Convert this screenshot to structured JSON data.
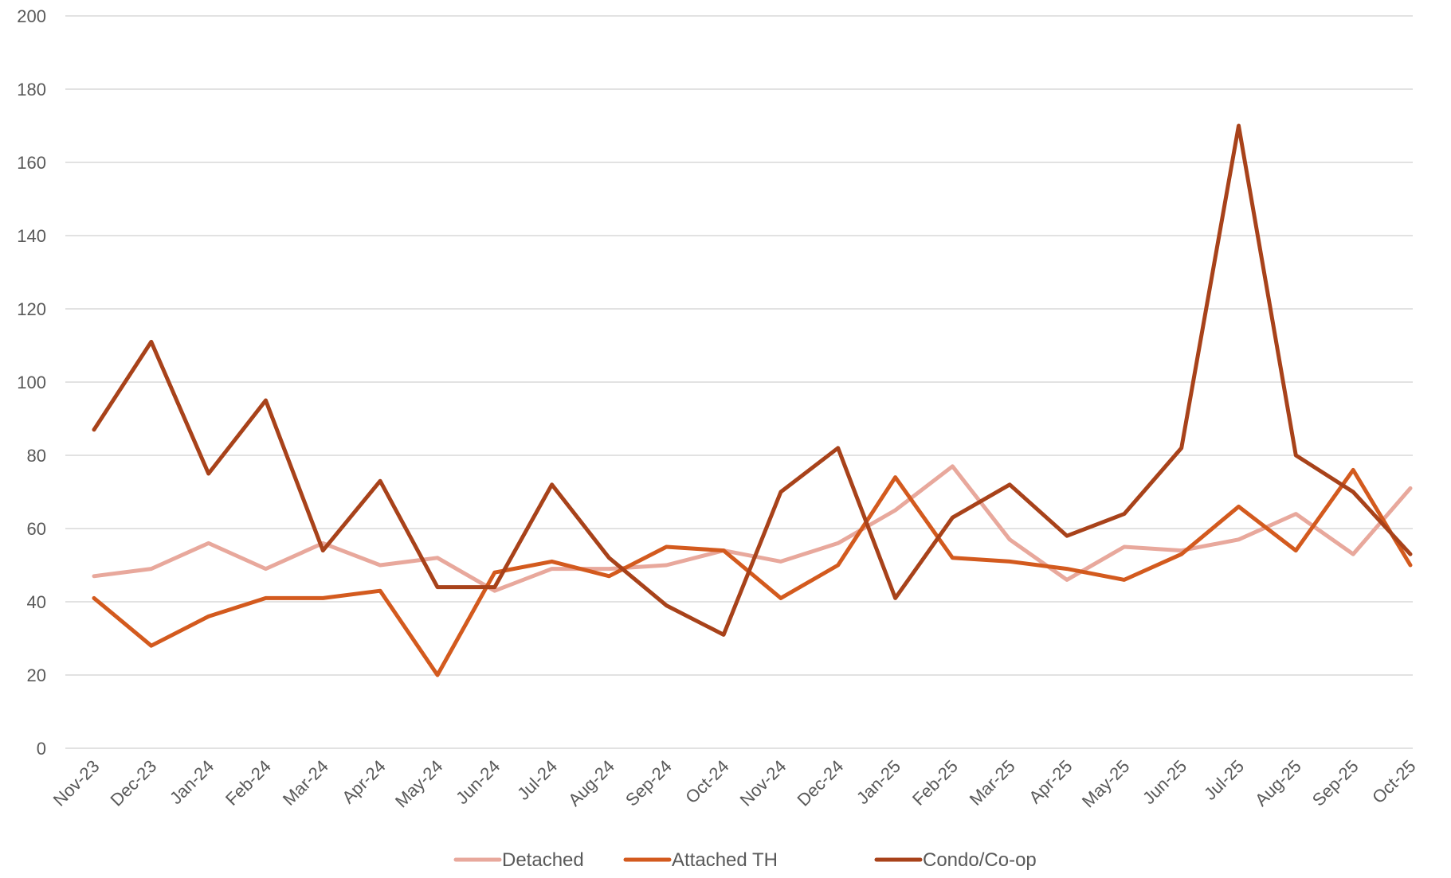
{
  "chart_data": {
    "type": "line",
    "title": "",
    "xlabel": "",
    "ylabel": "",
    "ylim": [
      0,
      200
    ],
    "yticks": [
      "0",
      "20",
      "40",
      "60",
      "80",
      "100",
      "120",
      "140",
      "160",
      "180",
      "200"
    ],
    "grid": true,
    "legend_position": "bottom",
    "categories": [
      "Nov-23",
      "Dec-23",
      "Jan-24",
      "Feb-24",
      "Mar-24",
      "Apr-24",
      "May-24",
      "Jun-24",
      "Jul-24",
      "Aug-24",
      "Sep-24",
      "Oct-24",
      "Nov-24",
      "Dec-24",
      "Jan-25",
      "Feb-25",
      "Mar-25",
      "Apr-25",
      "May-25",
      "Jun-25",
      "Jul-25",
      "Aug-25",
      "Sep-25",
      "Oct-25"
    ],
    "series": [
      {
        "name": "Detached",
        "color": "#e8a89c",
        "values": [
          47,
          49,
          56,
          49,
          56,
          50,
          52,
          43,
          49,
          49,
          50,
          54,
          51,
          56,
          65,
          77,
          57,
          46,
          55,
          54,
          57,
          64,
          53,
          71
        ]
      },
      {
        "name": "Attached TH",
        "color": "#d35a1e",
        "values": [
          41,
          28,
          36,
          41,
          41,
          43,
          20,
          48,
          51,
          47,
          55,
          54,
          41,
          50,
          74,
          52,
          51,
          49,
          46,
          53,
          66,
          54,
          76,
          50
        ]
      },
      {
        "name": "Condo/Co-op",
        "color": "#a8421a",
        "values": [
          87,
          111,
          75,
          95,
          54,
          73,
          44,
          44,
          72,
          52,
          39,
          31,
          70,
          82,
          41,
          63,
          72,
          58,
          64,
          82,
          170,
          80,
          70,
          53
        ]
      }
    ]
  }
}
